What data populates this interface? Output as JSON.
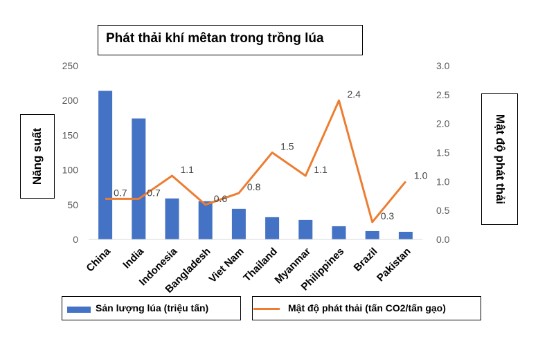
{
  "chart_data": {
    "type": "bar+line",
    "title": "Phát thải khí mêtan trong trồng lúa",
    "categories": [
      "China",
      "India",
      "Indonesia",
      "Bangladesh",
      "Viet Nam",
      "Thailand",
      "Myanmar",
      "Philippines",
      "Brazil",
      "Pakistan"
    ],
    "series": [
      {
        "name": "Sản lượng lúa (triệu tấn)",
        "type": "bar",
        "axis": "left",
        "color": "#4472C4",
        "values": [
          214,
          174,
          59,
          55,
          44,
          32,
          28,
          19,
          12,
          11
        ]
      },
      {
        "name": "Mật độ phát thải (tấn CO2/tấn gạo)",
        "type": "line",
        "axis": "right",
        "color": "#ED7D31",
        "values": [
          0.7,
          0.7,
          1.1,
          0.6,
          0.8,
          1.5,
          1.1,
          2.4,
          0.3,
          1.0
        ],
        "labels": [
          "0.7",
          "0.7",
          "1.1",
          "0.6",
          "0.8",
          "1.5",
          "1.1",
          "2.4",
          "0.3",
          "1.0"
        ]
      }
    ],
    "ylabel_left": "Năng suất",
    "ylabel_right": "Mật độ phát thải",
    "ylim_left": [
      0,
      250
    ],
    "yticks_left": [
      "0",
      "50",
      "100",
      "150",
      "200",
      "250"
    ],
    "ylim_right": [
      0,
      3
    ],
    "yticks_right": [
      "0.0",
      "0.5",
      "1.0",
      "1.5",
      "2.0",
      "2.5",
      "3.0"
    ],
    "grid": false,
    "legend_position": "bottom"
  }
}
